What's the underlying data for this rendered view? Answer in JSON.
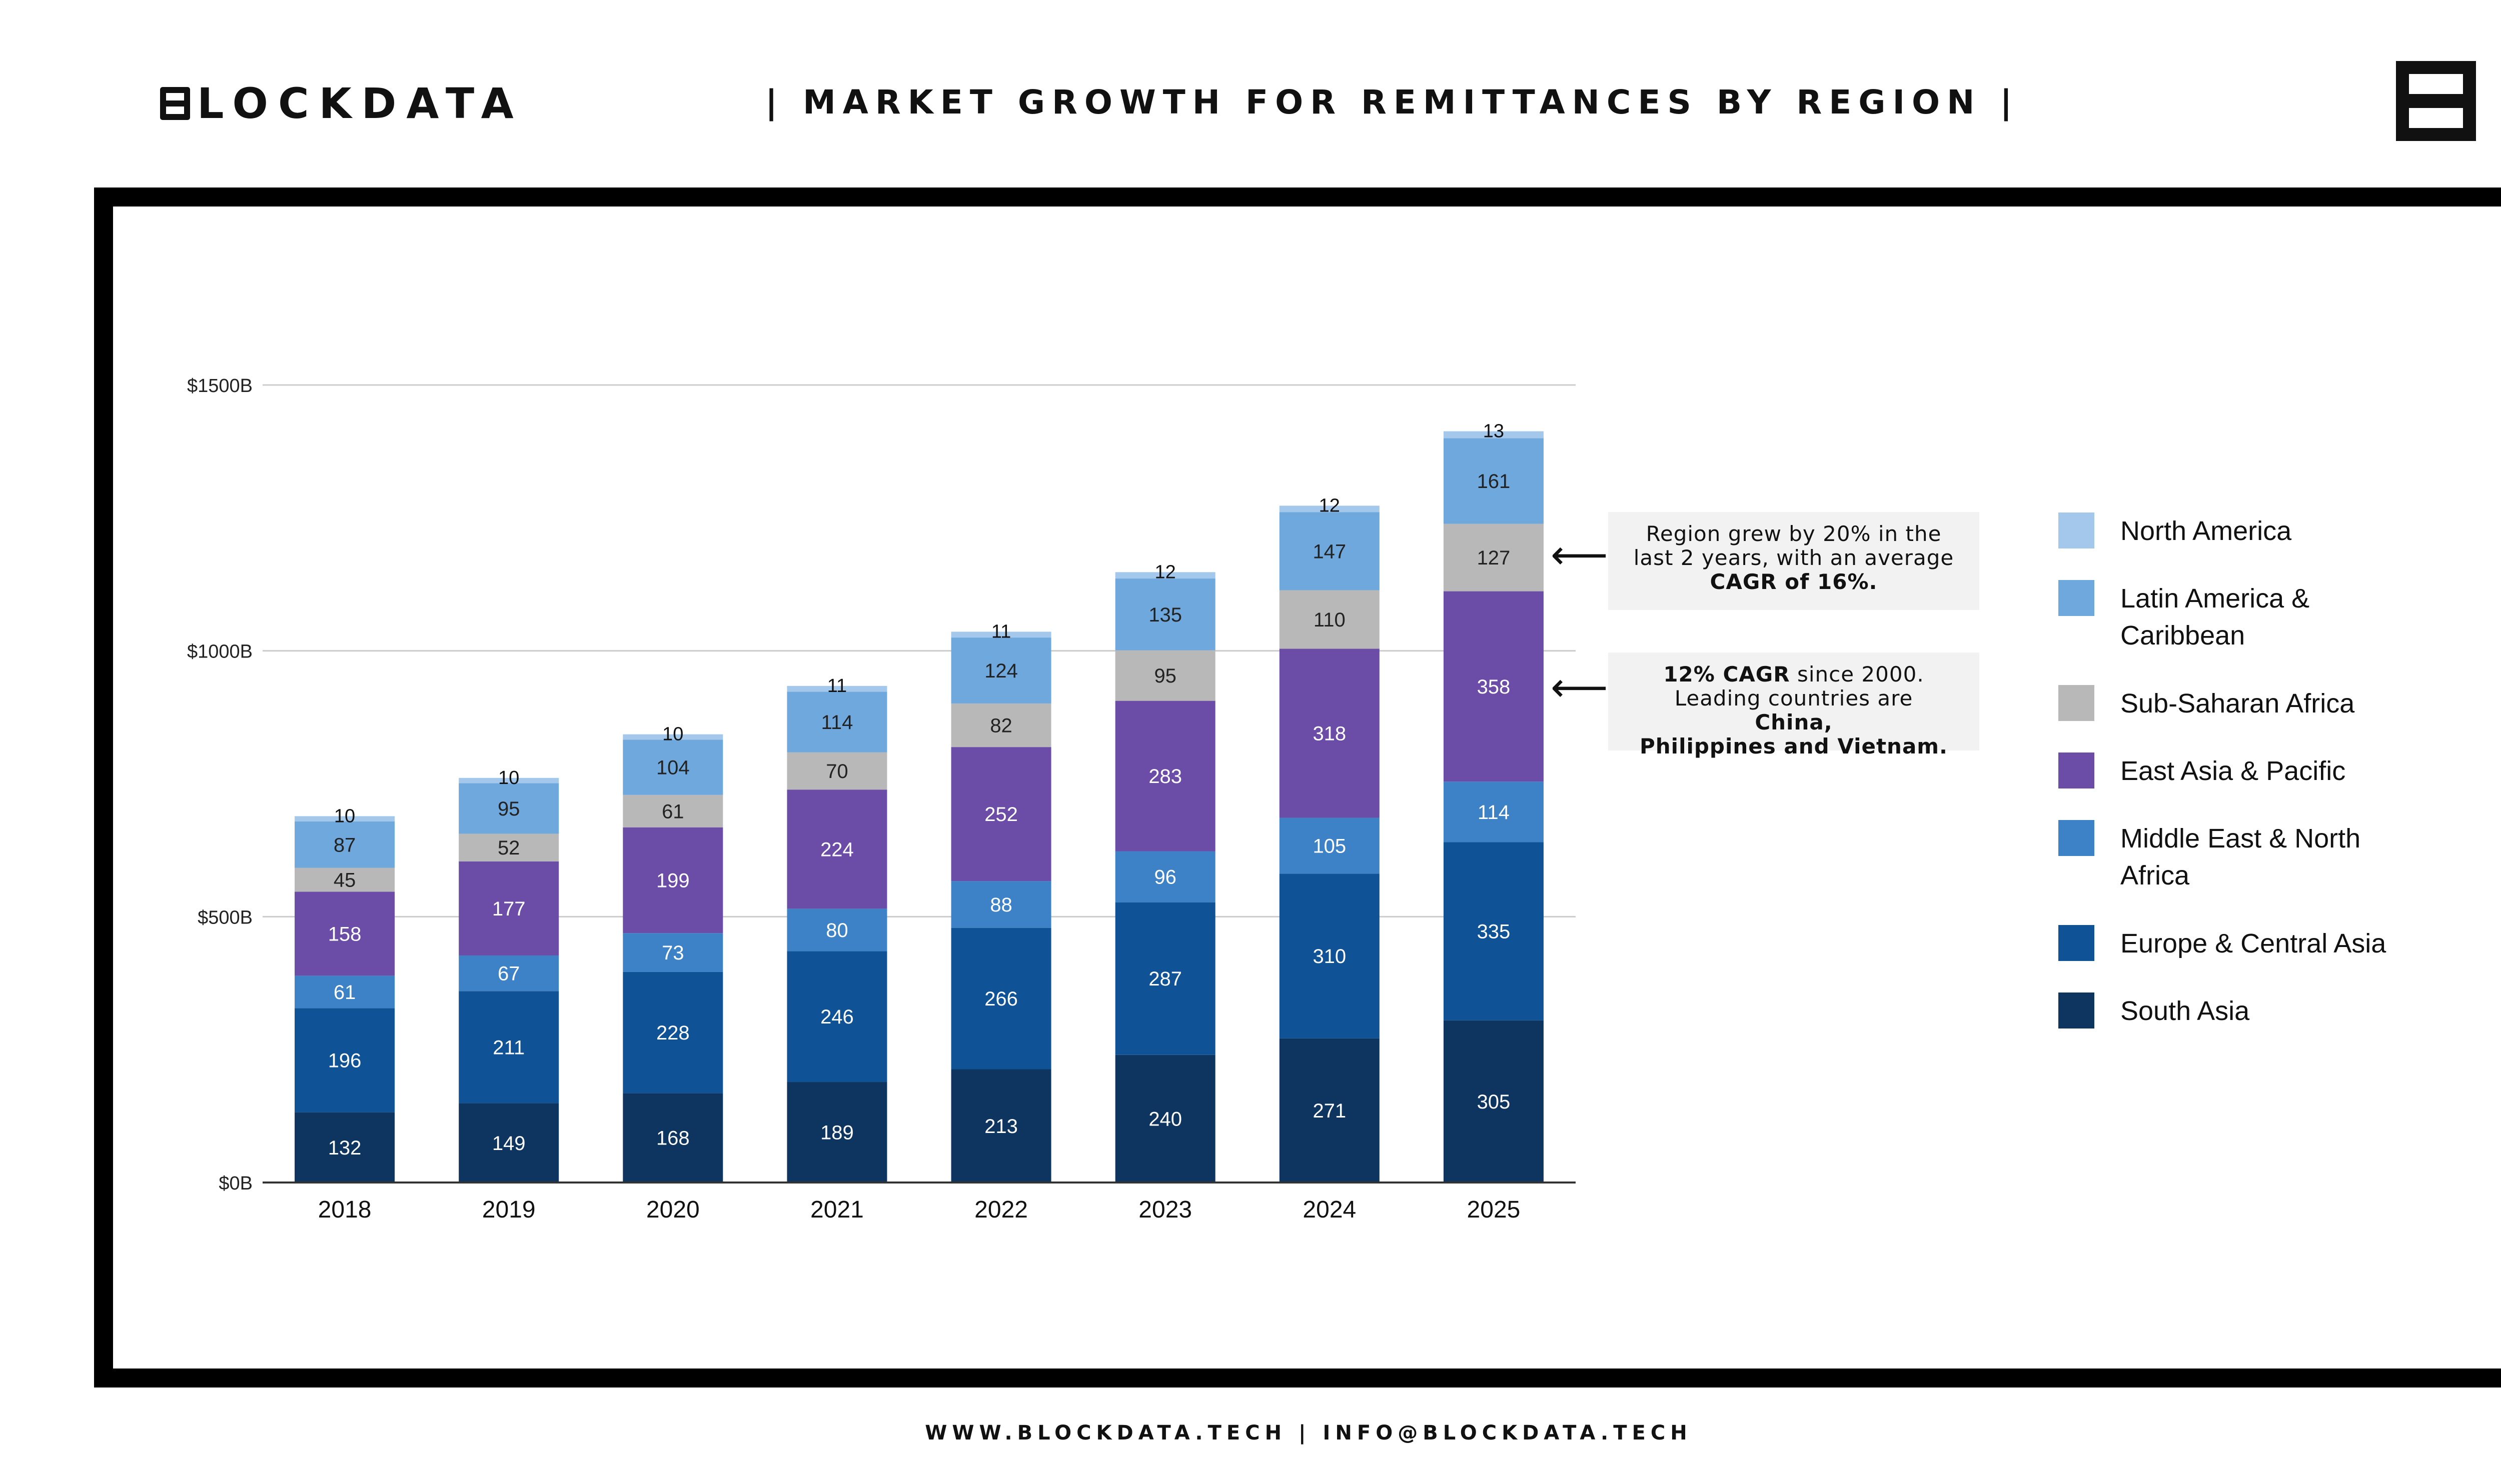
{
  "header": {
    "logo_text": "LOCKDATA",
    "title": "| MARKET GROWTH FOR REMITTANCES BY REGION |"
  },
  "colors": {
    "south_asia": "#0d3560",
    "europe_central_asia": "#0f5295",
    "middle_east_north_africa": "#3d82c6",
    "east_asia_pacific": "#6b4ca6",
    "sub_saharan_africa": "#b8b8b8",
    "latin_america_caribbean": "#6fa8dc",
    "north_america": "#a4c8ec"
  },
  "annotations": [
    {
      "parts": [
        {
          "text": "Region grew by 20% in the",
          "bold": false
        },
        {
          "text": "last 2 years, with an average",
          "bold": false
        },
        {
          "text": "CAGR of 16%.",
          "bold": true
        }
      ]
    },
    {
      "parts": [
        {
          "text": "12% CAGR",
          "bold": true
        },
        {
          "text": " since 2000.",
          "bold": false
        },
        {
          "text": "Leading countries are ",
          "bold": false
        },
        {
          "text": "China,",
          "bold": true
        },
        {
          "text": "Philippines and Vietnam.",
          "bold": true
        }
      ]
    }
  ],
  "footer": "WWW.BLOCKDATA.TECH | INFO@BLOCKDATA.TECH",
  "chart_data": {
    "type": "bar",
    "stacked": true,
    "title": "| MARKET GROWTH FOR REMITTANCES BY REGION |",
    "categories": [
      "2018",
      "2019",
      "2020",
      "2021",
      "2022",
      "2023",
      "2024",
      "2025"
    ],
    "y_ticks": [
      "$0B",
      "$500B",
      "$1000B",
      "$1500B"
    ],
    "y_tick_values": [
      0,
      500,
      1000,
      1500
    ],
    "ylim": [
      0,
      1500
    ],
    "grid": true,
    "legend_position": "right",
    "series": [
      {
        "name": "South Asia",
        "color": "#0d3560",
        "label_color": "#ffffff",
        "values": [
          132,
          149,
          168,
          189,
          213,
          240,
          271,
          305
        ]
      },
      {
        "name": "Europe & Central Asia",
        "color": "#0f5295",
        "label_color": "#ffffff",
        "values": [
          196,
          211,
          228,
          246,
          266,
          287,
          310,
          335
        ]
      },
      {
        "name": "Middle East & North Africa",
        "color": "#3d82c6",
        "label_color": "#ffffff",
        "values": [
          61,
          67,
          73,
          80,
          88,
          96,
          105,
          114
        ]
      },
      {
        "name": "East Asia & Pacific",
        "color": "#6b4ca6",
        "label_color": "#ffffff",
        "values": [
          158,
          177,
          199,
          224,
          252,
          283,
          318,
          358
        ]
      },
      {
        "name": "Sub-Saharan Africa",
        "color": "#b8b8b8",
        "label_color": "#222222",
        "values": [
          45,
          52,
          61,
          70,
          82,
          95,
          110,
          127
        ]
      },
      {
        "name": "Latin America & Caribbean",
        "color": "#6fa8dc",
        "label_color": "#222222",
        "values": [
          87,
          95,
          104,
          114,
          124,
          135,
          147,
          161
        ]
      },
      {
        "name": "North America",
        "color": "#a4c8ec",
        "label_color": "#222222",
        "values": [
          10,
          10,
          10,
          11,
          11,
          12,
          12,
          13
        ]
      }
    ],
    "legend": [
      {
        "label": "North America",
        "color": "#a4c8ec"
      },
      {
        "label": "Latin America & Caribbean",
        "color": "#6fa8dc"
      },
      {
        "label": "Sub-Saharan Africa",
        "color": "#b8b8b8"
      },
      {
        "label": "East Asia & Pacific",
        "color": "#6b4ca6"
      },
      {
        "label": "Middle East & North Africa",
        "color": "#3d82c6"
      },
      {
        "label": "Europe & Central Asia",
        "color": "#0f5295"
      },
      {
        "label": "South Asia",
        "color": "#0d3560"
      }
    ]
  }
}
